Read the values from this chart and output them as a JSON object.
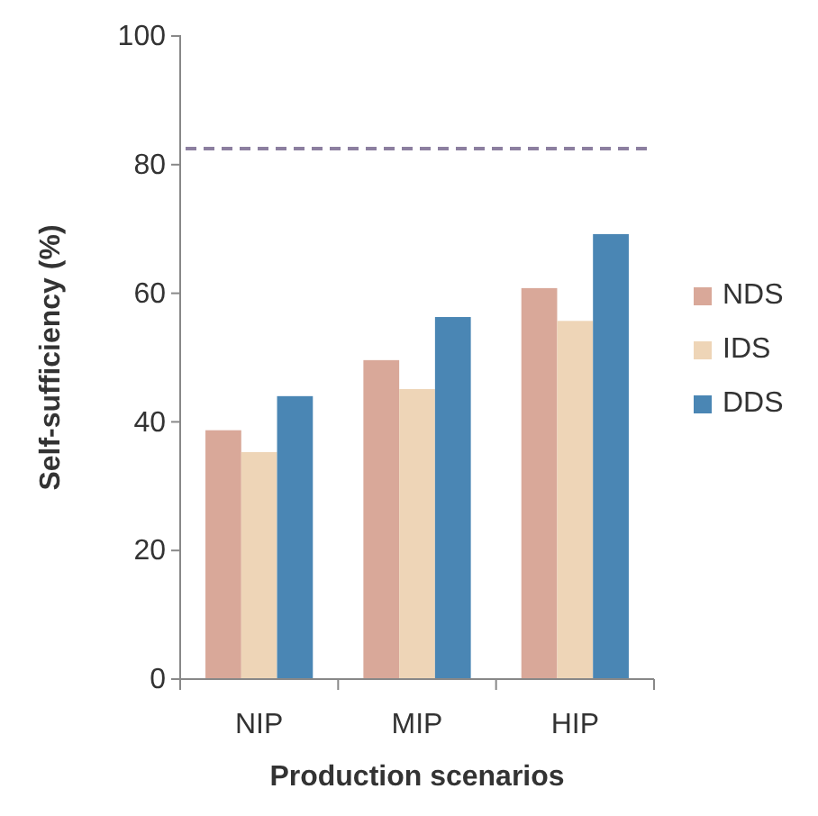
{
  "chart_data": {
    "type": "bar",
    "xlabel": "Production scenarios",
    "ylabel": "Self-sufficiency (%)",
    "categories": [
      "NIP",
      "MIP",
      "HIP"
    ],
    "series": [
      {
        "name": "NDS",
        "color": "#d9a899",
        "values": [
          38.7,
          49.6,
          60.8
        ]
      },
      {
        "name": "IDS",
        "color": "#eed5b7",
        "values": [
          35.3,
          45.1,
          55.7
        ]
      },
      {
        "name": "DDS",
        "color": "#4a86b4",
        "values": [
          44.0,
          56.3,
          69.2
        ]
      }
    ],
    "ylim": [
      0,
      100
    ],
    "yticks": [
      0,
      20,
      40,
      60,
      80,
      100
    ],
    "grid": false,
    "legend": "right",
    "ref_lines": [
      {
        "axis": "y",
        "value": 82.5,
        "color": "#8c7fa0",
        "line_style": "dashed"
      }
    ]
  }
}
